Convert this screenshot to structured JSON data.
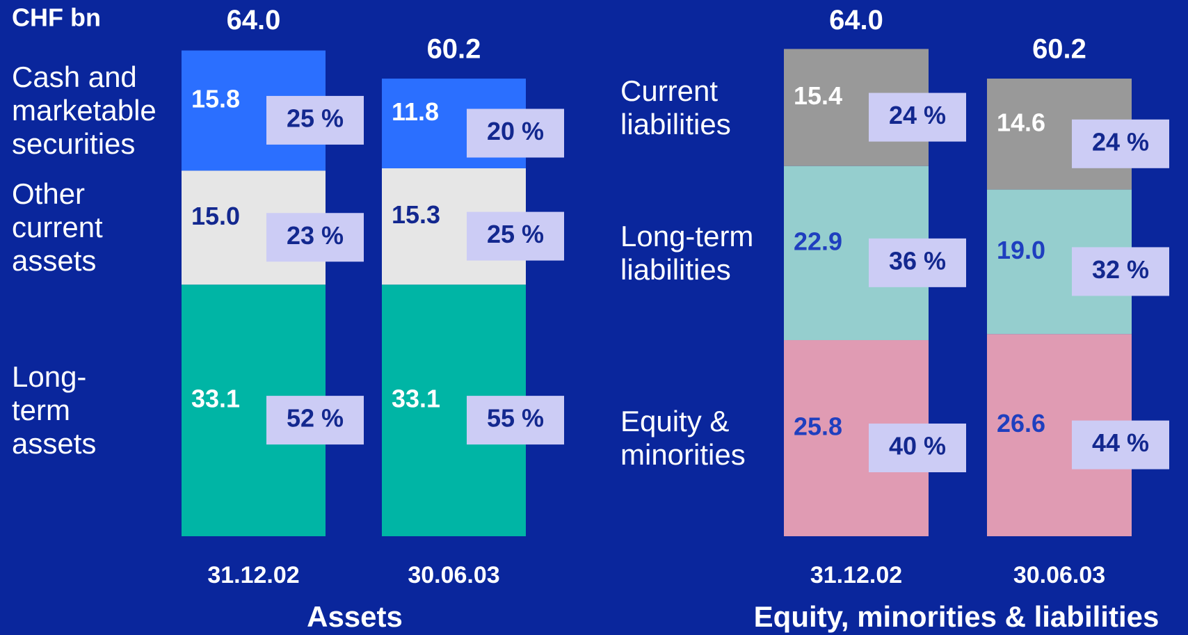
{
  "unit": "CHF bn",
  "chart_data": [
    {
      "type": "bar",
      "stacked": true,
      "title": "Assets",
      "categories": [
        "31.12.02",
        "30.06.03"
      ],
      "totals": [
        64.0,
        60.2
      ],
      "total_labels": [
        "64.0",
        "60.2"
      ],
      "series": [
        {
          "name": "Long-\nterm\nassets",
          "color": "#00b5a5",
          "label_color": "#ffffff",
          "values": [
            33.1,
            33.1
          ],
          "shares": [
            52,
            55
          ],
          "share_labels": [
            "52 %",
            "55 %"
          ]
        },
        {
          "name": "Other\ncurrent\nassets",
          "color": "#e6e6e6",
          "label_color": "#13288f",
          "values": [
            15.0,
            15.3
          ],
          "value_labels": [
            "15.0",
            "15.3"
          ],
          "shares": [
            23,
            25
          ],
          "share_labels": [
            "23 %",
            "25 %"
          ]
        },
        {
          "name": "Cash and\nmarketable\nsecurities",
          "color": "#2b6fff",
          "label_color": "#ffffff",
          "values": [
            15.8,
            11.8
          ],
          "shares": [
            25,
            20
          ],
          "share_labels": [
            "25 %",
            "20 %"
          ]
        }
      ]
    },
    {
      "type": "bar",
      "stacked": true,
      "title": "Equity, minorities & liabilities",
      "categories": [
        "31.12.02",
        "30.06.03"
      ],
      "totals": [
        64.0,
        60.2
      ],
      "total_labels": [
        "64.0",
        "60.2"
      ],
      "series": [
        {
          "name": "Equity &\nminorities",
          "color": "#e09bb3",
          "label_color": "#1f3fbf",
          "values": [
            25.8,
            26.6
          ],
          "shares": [
            40,
            44
          ],
          "share_labels": [
            "40 %",
            "44 %"
          ]
        },
        {
          "name": "Long-term\nliabilities",
          "color": "#95cece",
          "label_color": "#1f3fbf",
          "values": [
            22.9,
            19.0
          ],
          "value_labels": [
            "22.9",
            "19.0"
          ],
          "shares": [
            36,
            32
          ],
          "share_labels": [
            "36 %",
            "32 %"
          ]
        },
        {
          "name": "Current\nliabilities",
          "color": "#999999",
          "label_color": "#ffffff",
          "values": [
            15.4,
            14.6
          ],
          "shares": [
            24,
            24
          ],
          "share_labels": [
            "24 %",
            "24 %"
          ]
        }
      ]
    }
  ]
}
